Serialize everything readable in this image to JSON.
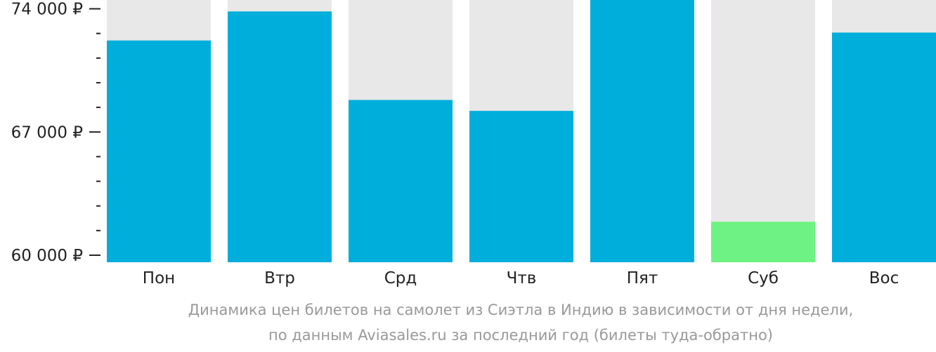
{
  "chart_data": {
    "type": "bar",
    "categories": [
      "Пон",
      "Втр",
      "Срд",
      "Чтв",
      "Пят",
      "Суб",
      "Вос"
    ],
    "values": [
      72200,
      73850,
      68820,
      68200,
      74500,
      61900,
      72650
    ],
    "highlight_index": 5,
    "ylim": [
      59600,
      74500
    ],
    "yticks": [
      {
        "value": 60000,
        "label": "60 000 ₽"
      },
      {
        "value": 67000,
        "label": "67 000 ₽"
      },
      {
        "value": 74000,
        "label": "74 000 ₽"
      }
    ],
    "minor_tick_step": 1400,
    "caption_line1": "Динамика цен билетов на самолет из Сиэтла в Индию в зависимости от дня недели,",
    "caption_line2": "по данным Aviasales.ru за последний год (билеты туда-обратно)",
    "colors": {
      "bar": "#00aedb",
      "highlight": "#6ef283",
      "track": "#e8e8e8",
      "axis": "#222222",
      "caption": "#999999"
    }
  }
}
